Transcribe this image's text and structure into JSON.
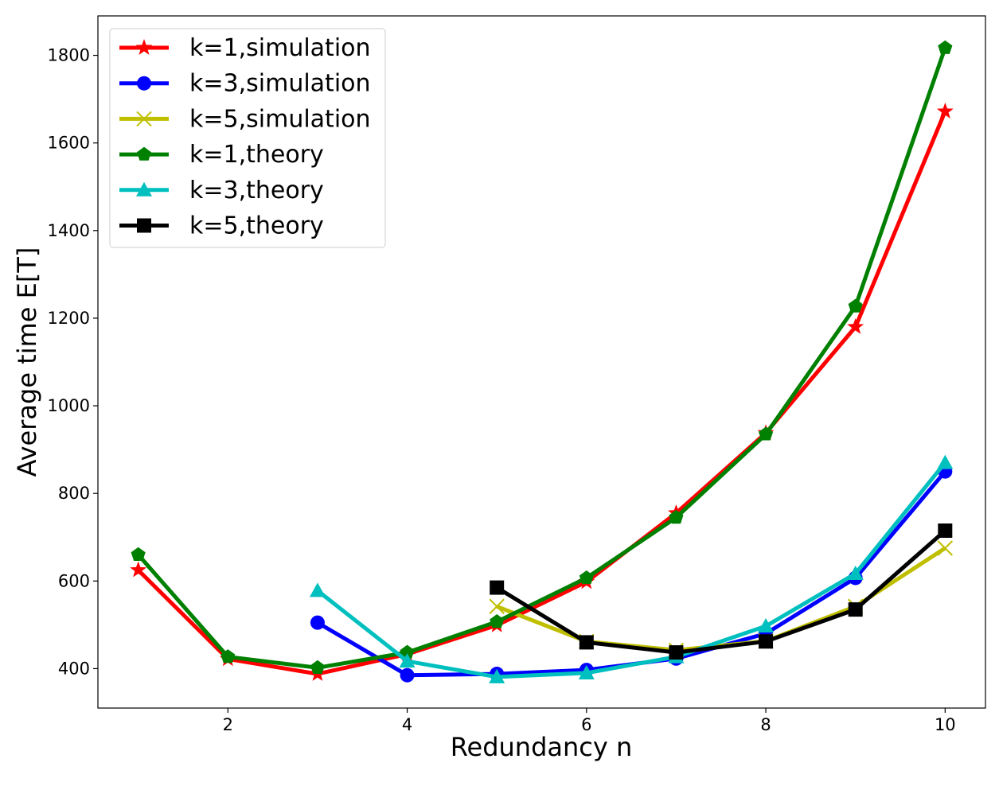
{
  "chart_data": {
    "type": "line",
    "title": "",
    "xlabel": "Redundancy n",
    "ylabel": "Average time E[T]",
    "xlim": [
      0.55,
      10.45
    ],
    "ylim": [
      310,
      1890
    ],
    "xticks": [
      2,
      4,
      6,
      8,
      10
    ],
    "yticks": [
      400,
      600,
      800,
      1000,
      1200,
      1400,
      1600,
      1800
    ],
    "grid": false,
    "legend_position": "top-left",
    "series": [
      {
        "name": "k=1,simulation",
        "color": "#ff0000",
        "marker": "star",
        "x": [
          1,
          2,
          3,
          4,
          5,
          6,
          7,
          8,
          9,
          10
        ],
        "values": [
          625,
          422,
          388,
          433,
          499,
          598,
          755,
          938,
          1180,
          1672
        ]
      },
      {
        "name": "k=3,simulation",
        "color": "#0000ff",
        "marker": "circle",
        "x": [
          3,
          4,
          5,
          6,
          7,
          8,
          9,
          10
        ],
        "values": [
          505,
          385,
          388,
          397,
          423,
          480,
          607,
          850
        ]
      },
      {
        "name": "k=5,simulation",
        "color": "#bfbf00",
        "marker": "x",
        "x": [
          5,
          6,
          7,
          8,
          9,
          10
        ],
        "values": [
          542,
          462,
          442,
          463,
          542,
          675
        ]
      },
      {
        "name": "k=1,theory",
        "color": "#008000",
        "marker": "pentagon",
        "x": [
          1,
          2,
          3,
          4,
          5,
          6,
          7,
          8,
          9,
          10
        ],
        "values": [
          660,
          427,
          402,
          437,
          507,
          607,
          745,
          935,
          1227,
          1817
        ]
      },
      {
        "name": "k=3,theory",
        "color": "#00bfbf",
        "marker": "triangle",
        "x": [
          3,
          4,
          5,
          6,
          7,
          8,
          9,
          10
        ],
        "values": [
          578,
          417,
          381,
          390,
          427,
          497,
          617,
          870
        ]
      },
      {
        "name": "k=5,theory",
        "color": "#000000",
        "marker": "square",
        "x": [
          5,
          6,
          7,
          8,
          9,
          10
        ],
        "values": [
          585,
          460,
          437,
          462,
          535,
          715
        ]
      }
    ]
  }
}
